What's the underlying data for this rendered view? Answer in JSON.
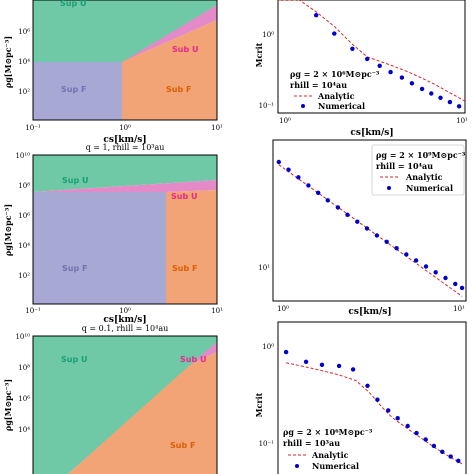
{
  "colors": {
    "sup_u": "#6fc9a6",
    "sub_u": "#e58ac9",
    "sup_f": "#a7a9d4",
    "sub_f": "#f2a477",
    "sup_u_text": "#1a9e77",
    "sub_u_text": "#e7298a",
    "sup_f_text": "#7570b3",
    "sub_f_text": "#d95f02",
    "analytic": "#d62728",
    "numerical": "#0000cc"
  },
  "left_panels": [
    {
      "title": "",
      "ylabel": "ρg[M⊙pc⁻³]",
      "xlabel": "cs[km/s]",
      "ytick_labels": [
        "10⁶",
        "10⁴",
        "10²"
      ],
      "xtick_labels": [
        "10⁻¹",
        "10⁰",
        "10¹"
      ],
      "region_labels": {
        "sup_u": "Sup U",
        "sub_u": "Sub U",
        "sup_f": "Sup F",
        "sub_f": "Sub F"
      }
    },
    {
      "title": "q = 1, rhill = 10³au",
      "ylabel": "ρg[M⊙pc⁻³]",
      "xlabel": "cs[km/s]",
      "ytick_labels": [
        "10¹⁰",
        "10⁸",
        "10⁶",
        "10⁴",
        "10²"
      ],
      "xtick_labels": [
        "10⁻¹",
        "10⁰",
        "10¹"
      ],
      "region_labels": {
        "sup_u": "Sup U",
        "sub_u": "Sub U",
        "sup_f": "Sup F",
        "sub_f": "Sub F"
      }
    },
    {
      "title": "q = 0.1, rhill = 10⁴au",
      "ylabel": "ρg[M⊙pc⁻³]",
      "ytick_labels": [
        "10¹⁰",
        "10⁸",
        "10⁶",
        "10⁴"
      ],
      "region_labels": {
        "sup_u": "Sup U",
        "sub_u": "Sub U",
        "sub_f": "Sub F"
      }
    }
  ],
  "chart_data": [
    {
      "type": "line",
      "xscale": "log",
      "yscale": "log",
      "xlim": [
        1,
        10
      ],
      "ylim": [
        0.07,
        12
      ],
      "xlabel": "cs[km/s]",
      "ylabel": "Mcrit",
      "xtick_labels": [
        "10⁰",
        "10¹"
      ],
      "ytick_labels": [
        "10⁰",
        "10⁻¹"
      ],
      "legend": {
        "line1": "ρg = 2 × 10⁶M⊙pc⁻³",
        "line2": "rhill = 10⁴au",
        "entries": [
          "Analytic",
          "Numerical"
        ],
        "placement": "lower-left"
      },
      "series": [
        {
          "name": "Analytic",
          "style": "dashed",
          "x": [
            1.0,
            1.3,
            1.6,
            2.0,
            2.5,
            3.0,
            4.0,
            5.0,
            6.0,
            7.0,
            8.0,
            9.0,
            10.0
          ],
          "y": [
            18.0,
            12.0,
            7.0,
            3.6,
            1.6,
            0.9,
            0.62,
            0.45,
            0.33,
            0.25,
            0.19,
            0.15,
            0.12
          ]
        },
        {
          "name": "Numerical",
          "style": "markers",
          "x": [
            1.6,
            2.0,
            2.5,
            3.0,
            3.5,
            4.0,
            4.6,
            5.2,
            5.9,
            6.6,
            7.4,
            8.3,
            9.3
          ],
          "y": [
            6.0,
            2.6,
            1.3,
            0.82,
            0.6,
            0.45,
            0.35,
            0.27,
            0.21,
            0.17,
            0.14,
            0.115,
            0.095
          ]
        }
      ]
    },
    {
      "type": "line",
      "xscale": "log",
      "yscale": "log",
      "xlim": [
        0.93,
        10.5
      ],
      "ylim": [
        4.2,
        220
      ],
      "xlabel": "cs[km/s]",
      "xtick_labels": [
        "10⁰",
        "10¹"
      ],
      "ytick_labels": [
        "10¹"
      ],
      "legend": {
        "line1": "ρg = 2 × 10⁹M⊙pc⁻³",
        "line2": "rhill = 10⁴au",
        "entries": [
          "Analytic",
          "Numerical"
        ],
        "placement": "upper-right"
      },
      "series": [
        {
          "name": "Analytic",
          "style": "dashed",
          "x": [
            1.0,
            10.0
          ],
          "y": [
            120,
            4.7
          ]
        },
        {
          "name": "Numerical",
          "style": "markers",
          "x": [
            1.0,
            1.13,
            1.28,
            1.45,
            1.64,
            1.85,
            2.1,
            2.37,
            2.68,
            3.03,
            3.43,
            3.88,
            4.39,
            4.96,
            5.61,
            6.35,
            7.18,
            8.12,
            9.18,
            10.0
          ],
          "y": [
            128,
            106,
            88,
            72,
            60,
            50,
            42,
            35,
            29.5,
            25,
            21,
            18,
            15.4,
            13.2,
            11.4,
            9.8,
            8.5,
            7.4,
            6.4,
            5.8
          ]
        }
      ]
    },
    {
      "type": "line",
      "xscale": "log",
      "yscale": "log",
      "xlim": [
        0.9,
        10.5
      ],
      "ylim": [
        0.06,
        12
      ],
      "ylabel": "Mcrit",
      "ytick_labels": [
        "10⁰",
        "10⁻¹"
      ],
      "legend": {
        "line1": "ρg = 2 × 10⁶M⊙pc⁻³",
        "line2": "rhill = 10³au",
        "entries": [
          "Analytic",
          "Numerical"
        ],
        "placement": "lower-left"
      },
      "series": [
        {
          "name": "Analytic",
          "style": "dashed",
          "x": [
            1.0,
            1.3,
            1.6,
            2.0,
            2.5,
            3.0,
            3.5,
            4.0,
            5.0,
            6.0,
            7.0,
            8.0,
            9.0,
            10.0
          ],
          "y": [
            2.9,
            2.5,
            2.2,
            1.9,
            1.55,
            1.0,
            0.62,
            0.43,
            0.28,
            0.2,
            0.15,
            0.12,
            0.1,
            0.085
          ]
        },
        {
          "name": "Numerical",
          "style": "markers",
          "x": [
            1.0,
            1.3,
            1.6,
            2.0,
            2.4,
            2.9,
            3.3,
            3.8,
            4.3,
            4.9,
            5.5,
            6.2,
            6.9,
            7.7,
            8.6,
            9.5
          ],
          "y": [
            4.2,
            3.0,
            2.7,
            2.6,
            2.3,
            1.3,
            0.8,
            0.55,
            0.42,
            0.32,
            0.25,
            0.2,
            0.16,
            0.13,
            0.11,
            0.095
          ]
        }
      ]
    }
  ]
}
